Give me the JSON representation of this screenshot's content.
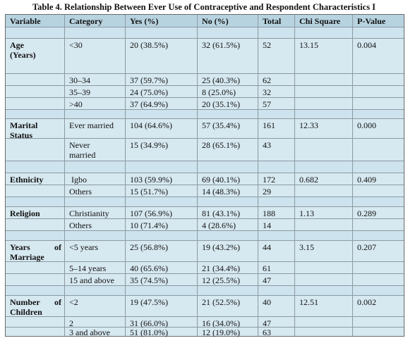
{
  "caption": "Table 4. Relationship Between Ever Use of Contraceptive and Respondent Characteristics I",
  "headers": [
    "Variable",
    "Category",
    "Yes (%)",
    "No (%)",
    "Total",
    "Chi Square",
    "P-Value"
  ],
  "groups": {
    "age": {
      "variable_line1": "Age",
      "variable_line2": "(Years)",
      "chi": "13.15",
      "p": "0.004",
      "rows": [
        {
          "category": "<30",
          "yes": "20 (38.5%)",
          "no": "32 (61.5%)",
          "total": "52"
        },
        {
          "category": "30–34",
          "yes": "37 (59.7%)",
          "no": "25 (40.3%)",
          "total": "62"
        },
        {
          "category": "35–39",
          "yes": "24 (75.0%)",
          "no": "8 (25.0%)",
          "total": "32"
        },
        {
          "category": ">40",
          "yes": "37 (64.9%)",
          "no": "20 (35.1%)",
          "total": "57"
        }
      ]
    },
    "marital": {
      "variable_line1": "Marital",
      "variable_line2": "Status",
      "chi": "12.33",
      "p": "0.000",
      "rows": [
        {
          "category": "Ever married",
          "yes": "104 (64.6%)",
          "no": "57 (35.4%)",
          "total": "161"
        },
        {
          "category_line1": "Never",
          "category_line2": "married",
          "yes": "15 (34.9%)",
          "no": "28 (65.1%)",
          "total": "43"
        }
      ]
    },
    "ethnicity": {
      "variable_line1": "Ethnicity",
      "chi": "0.682",
      "p": "0.409",
      "rows": [
        {
          "category": "Igbo",
          "yes": "103 (59.9%)",
          "no": "69 (40.1%)",
          "total": "172"
        },
        {
          "category": "Others",
          "yes": "15 (51.7%)",
          "no": "14 (48.3%)",
          "total": "29"
        }
      ]
    },
    "religion": {
      "variable_line1": "Religion",
      "chi": "1.13",
      "p": "0.289",
      "rows": [
        {
          "category": "Christianity",
          "yes": "107 (56.9%)",
          "no": "81 (43.1%)",
          "total": "188"
        },
        {
          "category": "Others",
          "yes": "10 (71.4%)",
          "no": "4 (28.6%)",
          "total": "14"
        }
      ]
    },
    "marriage": {
      "variable_line1a": "Years",
      "variable_line1b": "of",
      "variable_line2": "Marriage",
      "chi": "3.15",
      "p": "0.207",
      "rows": [
        {
          "category": "<5 years",
          "yes": "25 (56.8%)",
          "no": "19 (43.2%)",
          "total": "44"
        },
        {
          "category": "5–14 years",
          "yes": "40 (65.6%)",
          "no": "21 (34.4%)",
          "total": "61"
        },
        {
          "category": "15 and above",
          "yes": "35 (74.5%)",
          "no": "12 (25.5%)",
          "total": "47"
        }
      ]
    },
    "children": {
      "variable_line1a": "Number",
      "variable_line1b": "of",
      "variable_line2": "Children",
      "chi": "12.51",
      "p": "0.002",
      "rows": [
        {
          "category": "<2",
          "yes": "19 (47.5%)",
          "no": "21 (52.5%)",
          "total": "40"
        },
        {
          "category": "2",
          "yes": "31 (66.0%)",
          "no": "16 (34.0%)",
          "total": "47"
        },
        {
          "category": "3 and above",
          "yes": "51 (81.0%)",
          "no": "12 (19.0%)",
          "total": "63"
        }
      ]
    }
  }
}
